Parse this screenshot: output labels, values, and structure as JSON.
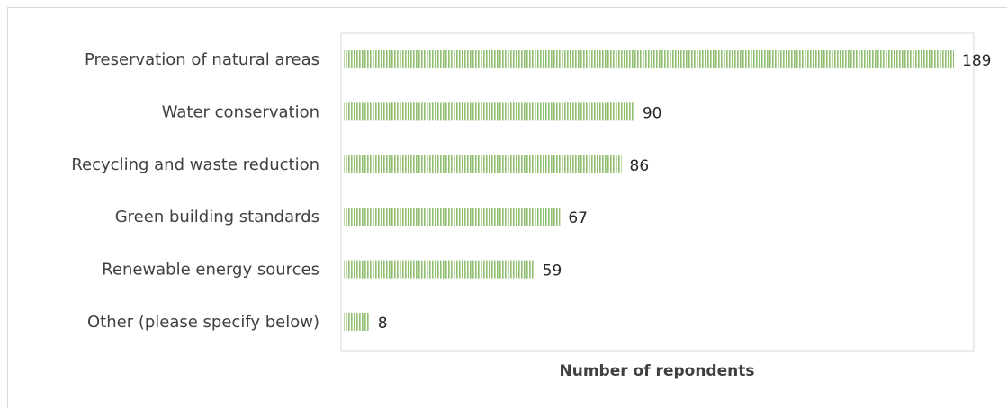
{
  "chart_data": {
    "type": "bar",
    "orientation": "horizontal",
    "categories": [
      "Preservation of natural areas",
      "Water conservation",
      "Recycling and waste reduction",
      "Green building standards",
      "Renewable energy sources",
      "Other (please specify below)"
    ],
    "values": [
      189,
      90,
      86,
      67,
      59,
      8
    ],
    "title": "",
    "xlabel": "Number of repondents",
    "ylabel": "",
    "xlim": [
      0,
      195
    ],
    "grid": false,
    "legend": "none",
    "bar_color": "#a9d18e",
    "bar_pattern": "vertical-hatch"
  }
}
